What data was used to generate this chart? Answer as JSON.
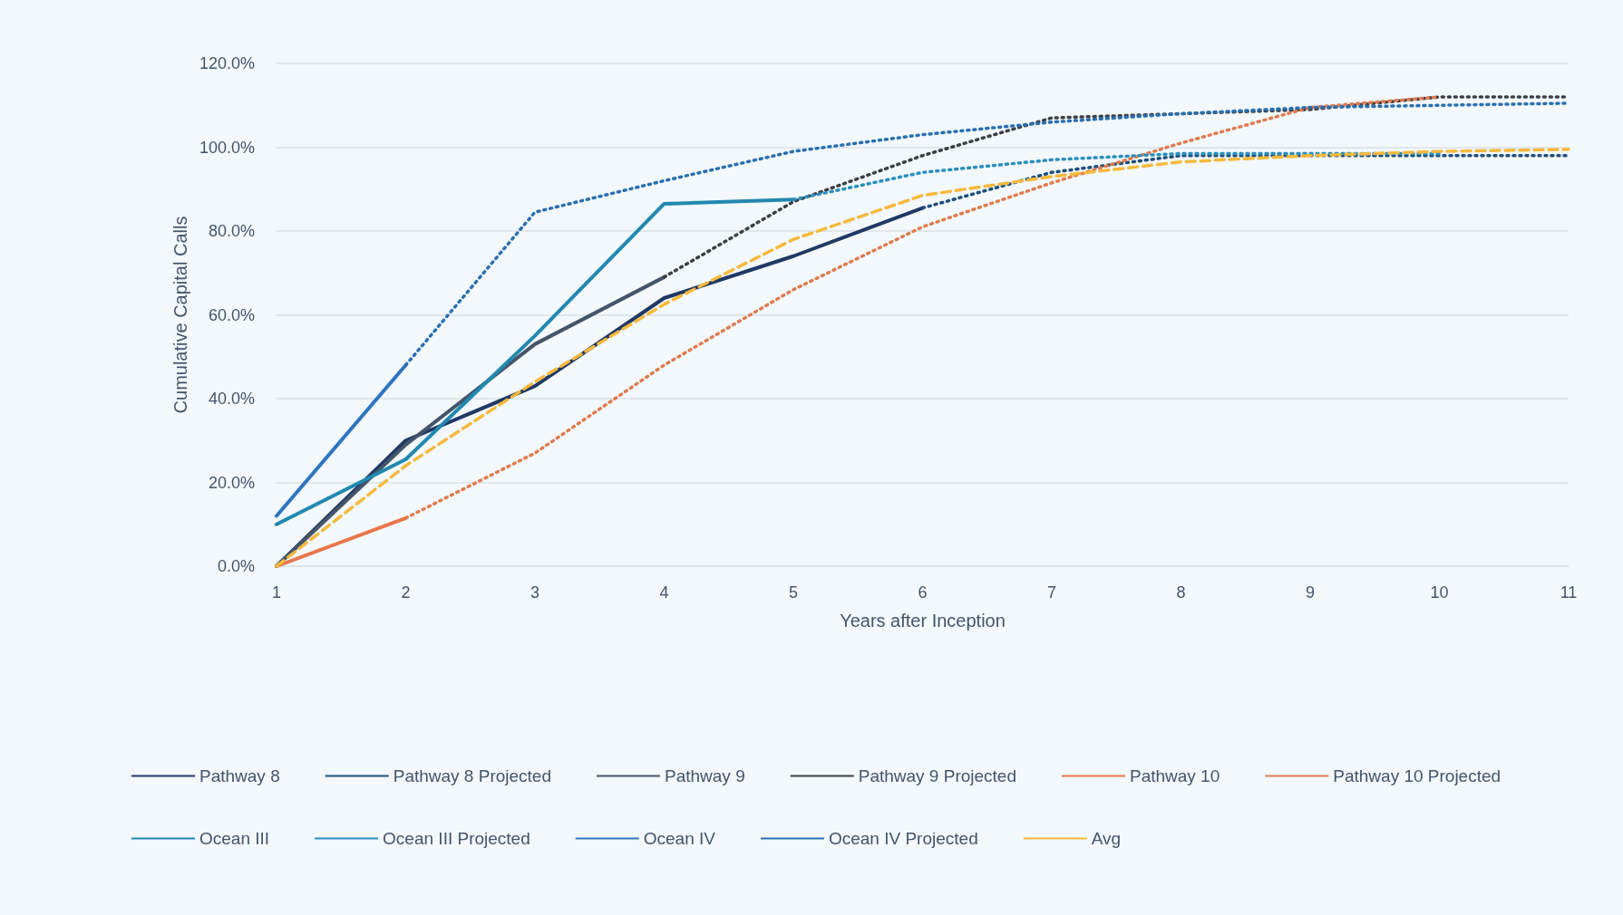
{
  "chart_data": {
    "type": "line",
    "xlabel": "Years after Inception",
    "ylabel": "Cumulative Capital Calls",
    "categories": [
      "1",
      "2",
      "3",
      "4",
      "5",
      "6",
      "7",
      "8",
      "9",
      "10",
      "11"
    ],
    "ylim": [
      0,
      120
    ],
    "yticks": [
      {
        "value": 0,
        "label": "0.0%"
      },
      {
        "value": 20,
        "label": "20.0%"
      },
      {
        "value": 40,
        "label": "40.0%"
      },
      {
        "value": 60,
        "label": "60.0%"
      },
      {
        "value": 80,
        "label": "80.0%"
      },
      {
        "value": 100,
        "label": "100.0%"
      },
      {
        "value": 120,
        "label": "120.0%"
      }
    ],
    "grid": "y",
    "legend": "bottom",
    "marker": "none",
    "series": [
      {
        "name": "Pathway 8",
        "color": "#203864",
        "line_style": "solid",
        "values": [
          0,
          30,
          43,
          64,
          74,
          85.5,
          null,
          null,
          null,
          null,
          null
        ]
      },
      {
        "name": "Pathway 8 Projected",
        "color": "#1f4e79",
        "line_style": "dotted",
        "values": [
          null,
          null,
          null,
          null,
          null,
          85.5,
          94,
          98,
          98,
          98,
          98
        ]
      },
      {
        "name": "Pathway 9",
        "color": "#44546a",
        "line_style": "solid",
        "values": [
          0,
          29,
          53,
          69,
          null,
          null,
          null,
          null,
          null,
          null,
          null
        ]
      },
      {
        "name": "Pathway 9 Projected",
        "color": "#3b3f46",
        "line_style": "dotted",
        "values": [
          null,
          null,
          null,
          69,
          87,
          98,
          107,
          108,
          109,
          112,
          112
        ]
      },
      {
        "name": "Pathway 10",
        "color": "#e8764a",
        "line_style": "solid",
        "values": [
          0,
          11.5,
          null,
          null,
          null,
          null,
          null,
          null,
          null,
          null,
          null
        ]
      },
      {
        "name": "Pathway 10 Projected",
        "color": "#e07b4f",
        "line_style": "dotted",
        "values": [
          null,
          11.5,
          27,
          48,
          66,
          81,
          91.5,
          101,
          109.5,
          112,
          null
        ]
      },
      {
        "name": "Ocean III",
        "color": "#2188b0",
        "line_style": "solid",
        "values": [
          10,
          25.5,
          55,
          86.5,
          87.5,
          null,
          null,
          null,
          null,
          null,
          null
        ]
      },
      {
        "name": "Ocean III Projected",
        "color": "#2a8fbd",
        "line_style": "dotted",
        "values": [
          null,
          null,
          null,
          null,
          87.5,
          94,
          97,
          98.5,
          98.5,
          98.5,
          null
        ]
      },
      {
        "name": "Ocean IV",
        "color": "#2e75c0",
        "line_style": "solid",
        "values": [
          12,
          48,
          null,
          null,
          null,
          null,
          null,
          null,
          null,
          null,
          null
        ]
      },
      {
        "name": "Ocean IV Projected",
        "color": "#2a6fb0",
        "line_style": "dotted",
        "values": [
          null,
          48,
          84.5,
          92,
          99,
          103,
          106,
          108,
          109.5,
          110,
          110.5
        ]
      },
      {
        "name": "Avg",
        "color": "#f5b93d",
        "line_style": "dashed",
        "values": [
          0,
          24,
          44,
          62.5,
          78,
          88.5,
          93,
          96.5,
          98,
          99,
          99.5
        ]
      }
    ]
  }
}
